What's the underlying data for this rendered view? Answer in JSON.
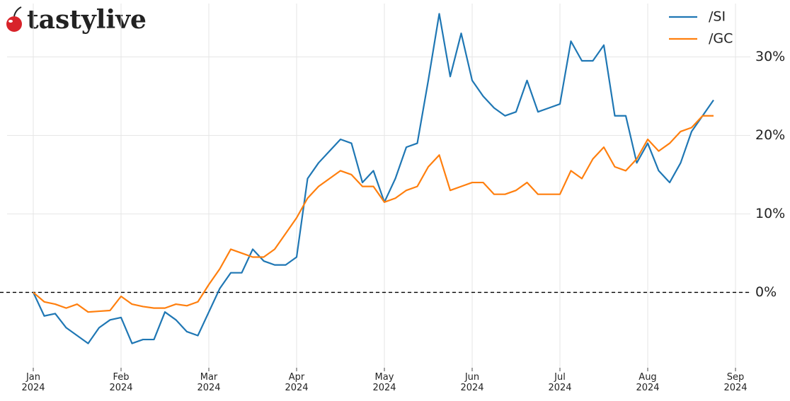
{
  "logo": "tastylive",
  "chart_data": {
    "type": "line",
    "categories": [
      "Jan 2024",
      null,
      null,
      null,
      null,
      null,
      null,
      null,
      "Feb 2024",
      null,
      null,
      null,
      null,
      null,
      null,
      null,
      "Mar 2024",
      null,
      null,
      null,
      null,
      null,
      null,
      null,
      "Apr 2024",
      null,
      null,
      null,
      null,
      null,
      null,
      null,
      "May 2024",
      null,
      null,
      null,
      null,
      null,
      null,
      null,
      "Jun 2024",
      null,
      null,
      null,
      null,
      null,
      null,
      null,
      "Jul 2024",
      null,
      null,
      null,
      null,
      null,
      null,
      null,
      "Aug 2024",
      null,
      null,
      null,
      null,
      null,
      null,
      null,
      "Sep 2024"
    ],
    "series": [
      {
        "name": "/SI",
        "color": "#1f77b4",
        "values": [
          0,
          -3,
          -2.7,
          -4.5,
          -5.5,
          -6.5,
          -4.5,
          -3.5,
          -3.2,
          -6.5,
          -6,
          -6,
          -2.5,
          -3.5,
          -5,
          -5.5,
          -2.5,
          0.5,
          2.5,
          2.5,
          5.5,
          4,
          3.5,
          3.5,
          4.5,
          14.5,
          16.5,
          18,
          19.5,
          19,
          14,
          15.5,
          11.5,
          14.5,
          18.5,
          19,
          27,
          35.5,
          27.5,
          33,
          27,
          25,
          23.5,
          22.5,
          23,
          27,
          23,
          23.5,
          24,
          32,
          29.5,
          29.5,
          31.5,
          22.5,
          22.5,
          16.5,
          19,
          15.5,
          14,
          16.5,
          20.5,
          22.5,
          24.5,
          null,
          null
        ]
      },
      {
        "name": "/GC",
        "color": "#ff7f0e",
        "values": [
          0,
          -1.2,
          -1.5,
          -2,
          -1.5,
          -2.5,
          -2.4,
          -2.3,
          -0.5,
          -1.5,
          -1.8,
          -2,
          -2,
          -1.5,
          -1.7,
          -1.2,
          1,
          3,
          5.5,
          5,
          4.5,
          4.5,
          5.5,
          7.5,
          9.5,
          12,
          13.5,
          14.5,
          15.5,
          15,
          13.5,
          13.5,
          11.5,
          12,
          13,
          13.5,
          16,
          17.5,
          13,
          13.5,
          14,
          14,
          12.5,
          12.5,
          13,
          14,
          12.5,
          12.5,
          12.5,
          15.5,
          14.5,
          17,
          18.5,
          16,
          15.5,
          17,
          19.5,
          18,
          19,
          20.5,
          21,
          22.5,
          22.5,
          null,
          null
        ]
      }
    ],
    "ylim": [
      -9.6,
      36.8
    ],
    "yticks": [
      {
        "value": 0,
        "label": "0%"
      },
      {
        "value": 10,
        "label": "10%"
      },
      {
        "value": 20,
        "label": "20%"
      },
      {
        "value": 30,
        "label": "30%"
      }
    ],
    "reference_line": 0,
    "grid": true,
    "legend": "upper right"
  }
}
